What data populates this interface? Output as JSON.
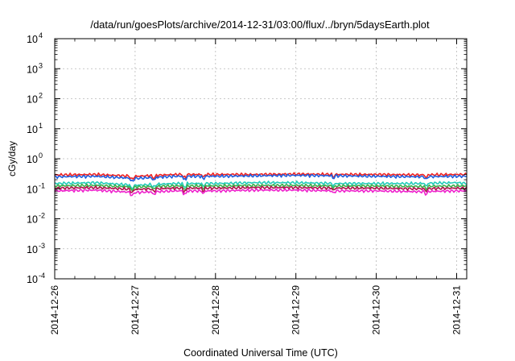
{
  "chart_data": {
    "type": "line",
    "title": "/data/run/goesPlots/archive/2014-12-31/03:00/flux/../bryn/5daysEarth.plot",
    "xlabel": "Coordinated Universal Time (UTC)",
    "ylabel": "cGy/day",
    "yscale": "log",
    "ylim": [
      0.0001,
      10000
    ],
    "yticks": [
      {
        "base": "10",
        "exp": "-4"
      },
      {
        "base": "10",
        "exp": "-3"
      },
      {
        "base": "10",
        "exp": "-2"
      },
      {
        "base": "10",
        "exp": "-1"
      },
      {
        "base": "10",
        "exp": "0"
      },
      {
        "base": "10",
        "exp": "1"
      },
      {
        "base": "10",
        "exp": "2"
      },
      {
        "base": "10",
        "exp": "3"
      },
      {
        "base": "10",
        "exp": "4"
      }
    ],
    "xlim": [
      "2014-12-26",
      "2014-12-31 03:00"
    ],
    "xticks": [
      "2014-12-26",
      "2014-12-27",
      "2014-12-28",
      "2014-12-29",
      "2014-12-30",
      "2014-12-31"
    ],
    "grid": true,
    "series": [
      {
        "color": "#ee2222",
        "level": 0.29,
        "points": [
          [
            "2014-12-26",
            0.29
          ],
          [
            "2014-12-26 12:00",
            0.3
          ],
          [
            "2014-12-27",
            0.26
          ],
          [
            "2014-12-27 12:00",
            0.3
          ],
          [
            "2014-12-28",
            0.3
          ],
          [
            "2014-12-28 12:00",
            0.3
          ],
          [
            "2014-12-29",
            0.31
          ],
          [
            "2014-12-29 12:00",
            0.3
          ],
          [
            "2014-12-30",
            0.3
          ],
          [
            "2014-12-30 12:00",
            0.29
          ],
          [
            "2014-12-31",
            0.3
          ],
          [
            "2014-12-31 03:00",
            0.3
          ]
        ]
      },
      {
        "color": "#1f5fe0",
        "level": 0.25,
        "points": [
          [
            "2014-12-26",
            0.25
          ],
          [
            "2014-12-26 12:00",
            0.26
          ],
          [
            "2014-12-27",
            0.22
          ],
          [
            "2014-12-27 12:00",
            0.26
          ],
          [
            "2014-12-28",
            0.26
          ],
          [
            "2014-12-28 12:00",
            0.27
          ],
          [
            "2014-12-29",
            0.28
          ],
          [
            "2014-12-29 12:00",
            0.27
          ],
          [
            "2014-12-30",
            0.26
          ],
          [
            "2014-12-30 12:00",
            0.25
          ],
          [
            "2014-12-31",
            0.26
          ],
          [
            "2014-12-31 03:00",
            0.26
          ]
        ]
      },
      {
        "color": "#22ccb8",
        "level": 0.15,
        "points": [
          [
            "2014-12-26",
            0.15
          ],
          [
            "2014-12-26 12:00",
            0.16
          ],
          [
            "2014-12-27",
            0.13
          ],
          [
            "2014-12-27 12:00",
            0.15
          ],
          [
            "2014-12-28",
            0.15
          ],
          [
            "2014-12-28 12:00",
            0.16
          ],
          [
            "2014-12-29",
            0.16
          ],
          [
            "2014-12-29 12:00",
            0.15
          ],
          [
            "2014-12-30",
            0.15
          ],
          [
            "2014-12-30 12:00",
            0.15
          ],
          [
            "2014-12-31",
            0.16
          ],
          [
            "2014-12-31 03:00",
            0.15
          ]
        ]
      },
      {
        "color": "#3cae4a",
        "level": 0.125,
        "points": [
          [
            "2014-12-26",
            0.125
          ],
          [
            "2014-12-26 12:00",
            0.13
          ],
          [
            "2014-12-27",
            0.115
          ],
          [
            "2014-12-27 12:00",
            0.125
          ],
          [
            "2014-12-28",
            0.125
          ],
          [
            "2014-12-28 12:00",
            0.13
          ],
          [
            "2014-12-29",
            0.13
          ],
          [
            "2014-12-29 12:00",
            0.125
          ],
          [
            "2014-12-30",
            0.125
          ],
          [
            "2014-12-30 12:00",
            0.12
          ],
          [
            "2014-12-31",
            0.125
          ],
          [
            "2014-12-31 03:00",
            0.125
          ]
        ]
      },
      {
        "color": "#b0124a",
        "level": 0.105,
        "points": [
          [
            "2014-12-26",
            0.105
          ],
          [
            "2014-12-26 12:00",
            0.11
          ],
          [
            "2014-12-27",
            0.095
          ],
          [
            "2014-12-27 12:00",
            0.105
          ],
          [
            "2014-12-28",
            0.105
          ],
          [
            "2014-12-28 12:00",
            0.11
          ],
          [
            "2014-12-29",
            0.11
          ],
          [
            "2014-12-29 12:00",
            0.105
          ],
          [
            "2014-12-30",
            0.105
          ],
          [
            "2014-12-30 12:00",
            0.1
          ],
          [
            "2014-12-31",
            0.105
          ],
          [
            "2014-12-31 03:00",
            0.105
          ]
        ]
      },
      {
        "color": "#ee22cc",
        "level": 0.085,
        "points": [
          [
            "2014-12-26",
            0.085
          ],
          [
            "2014-12-26 12:00",
            0.09
          ],
          [
            "2014-12-27",
            0.075
          ],
          [
            "2014-12-27 12:00",
            0.085
          ],
          [
            "2014-12-28",
            0.085
          ],
          [
            "2014-12-28 12:00",
            0.09
          ],
          [
            "2014-12-29",
            0.09
          ],
          [
            "2014-12-29 12:00",
            0.085
          ],
          [
            "2014-12-30",
            0.085
          ],
          [
            "2014-12-30 12:00",
            0.08
          ],
          [
            "2014-12-31",
            0.085
          ],
          [
            "2014-12-31 03:00",
            0.085
          ]
        ]
      }
    ]
  }
}
